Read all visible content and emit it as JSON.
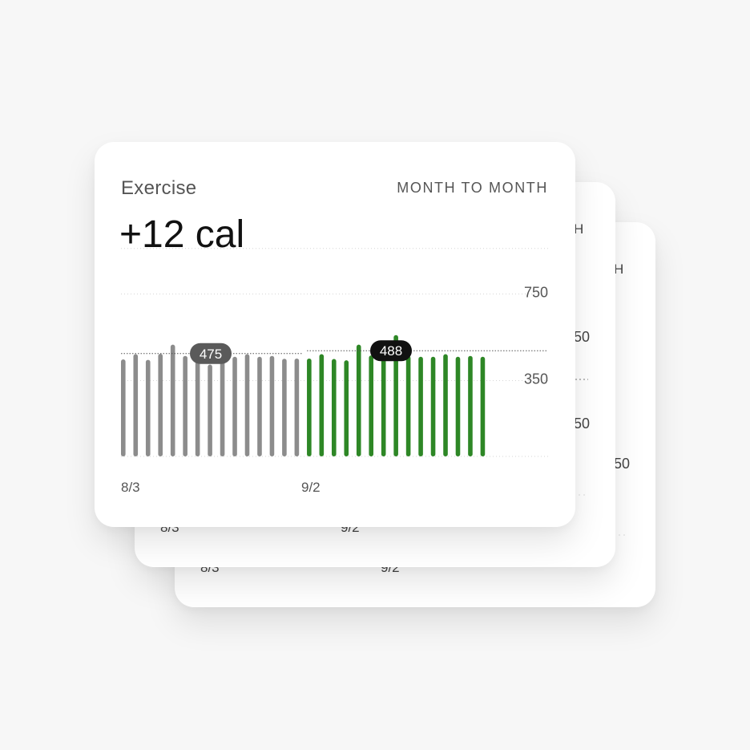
{
  "card": {
    "title": "Exercise",
    "period_label": "MONTH TO MONTH",
    "value": "+12 cal"
  },
  "back_cards": {
    "period_fragment": "H",
    "tick_fragments": [
      "50",
      "50",
      "50"
    ],
    "x_labels": [
      "8/3",
      "9/2"
    ]
  },
  "colors": {
    "previous_period": "#8c8c8c",
    "current_period": "#2e8726",
    "avg_badge_previous": "#5a5a5a",
    "avg_badge_current": "#111111"
  },
  "chart_data": {
    "type": "bar",
    "series": [
      {
        "values": [
          448,
          472,
          446,
          474,
          516,
          464,
          454,
          424,
          470,
          460,
          472,
          460,
          464,
          451,
          452
        ]
      },
      {
        "values": [
          452,
          472,
          450,
          444,
          516,
          466,
          470,
          560,
          464,
          460,
          460,
          472,
          460,
          464,
          460
        ]
      }
    ],
    "x_tick_labels": [
      "8/3",
      "9/2"
    ],
    "y_ticks": [
      350,
      750
    ],
    "ylim": [
      0,
      960
    ],
    "averages": [
      {
        "value": 475,
        "label": "475"
      },
      {
        "value": 488,
        "label": "488"
      }
    ],
    "grid": true
  }
}
